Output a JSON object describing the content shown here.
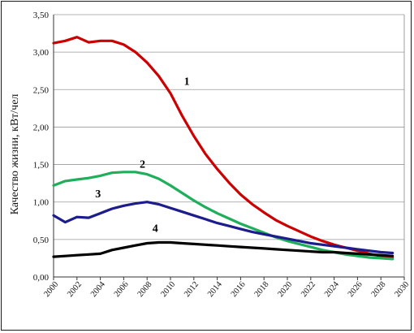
{
  "chart_data": {
    "type": "line",
    "title": "",
    "xlabel": "",
    "ylabel": "Качество жизни, кВт/чел",
    "xlim": [
      2000,
      2030
    ],
    "ylim": [
      0,
      3.5
    ],
    "y_ticks": [
      "0,00",
      "0,50",
      "1,00",
      "1,50",
      "2,00",
      "2,50",
      "3,00",
      "3,50"
    ],
    "x_ticks": [
      "2000",
      "2002",
      "2004",
      "2006",
      "2008",
      "2010",
      "2012",
      "2014",
      "2016",
      "2018",
      "2020",
      "2022",
      "2024",
      "2026",
      "2028",
      "2030"
    ],
    "grid": "horizontal",
    "legend": "none",
    "series": [
      {
        "name": "1",
        "color": "#cc0000",
        "points": [
          [
            2000,
            3.12
          ],
          [
            2001,
            3.15
          ],
          [
            2002,
            3.2
          ],
          [
            2003,
            3.13
          ],
          [
            2004,
            3.15
          ],
          [
            2005,
            3.15
          ],
          [
            2006,
            3.1
          ],
          [
            2007,
            3.0
          ],
          [
            2008,
            2.86
          ],
          [
            2009,
            2.68
          ],
          [
            2010,
            2.45
          ],
          [
            2011,
            2.15
          ],
          [
            2012,
            1.88
          ],
          [
            2013,
            1.64
          ],
          [
            2014,
            1.44
          ],
          [
            2015,
            1.26
          ],
          [
            2016,
            1.1
          ],
          [
            2017,
            0.97
          ],
          [
            2018,
            0.86
          ],
          [
            2019,
            0.76
          ],
          [
            2020,
            0.68
          ],
          [
            2021,
            0.61
          ],
          [
            2022,
            0.54
          ],
          [
            2023,
            0.48
          ],
          [
            2024,
            0.43
          ],
          [
            2025,
            0.39
          ],
          [
            2026,
            0.35
          ],
          [
            2027,
            0.31
          ],
          [
            2028,
            0.28
          ],
          [
            2029,
            0.26
          ]
        ]
      },
      {
        "name": "2",
        "color": "#1fae5a",
        "points": [
          [
            2000,
            1.22
          ],
          [
            2001,
            1.28
          ],
          [
            2002,
            1.3
          ],
          [
            2003,
            1.32
          ],
          [
            2004,
            1.35
          ],
          [
            2005,
            1.39
          ],
          [
            2006,
            1.4
          ],
          [
            2007,
            1.4
          ],
          [
            2008,
            1.37
          ],
          [
            2009,
            1.31
          ],
          [
            2010,
            1.22
          ],
          [
            2011,
            1.12
          ],
          [
            2012,
            1.02
          ],
          [
            2013,
            0.93
          ],
          [
            2014,
            0.85
          ],
          [
            2015,
            0.78
          ],
          [
            2016,
            0.71
          ],
          [
            2017,
            0.65
          ],
          [
            2018,
            0.59
          ],
          [
            2019,
            0.53
          ],
          [
            2020,
            0.48
          ],
          [
            2021,
            0.44
          ],
          [
            2022,
            0.4
          ],
          [
            2023,
            0.36
          ],
          [
            2024,
            0.33
          ],
          [
            2025,
            0.3
          ],
          [
            2026,
            0.28
          ],
          [
            2027,
            0.26
          ],
          [
            2028,
            0.25
          ],
          [
            2029,
            0.24
          ]
        ]
      },
      {
        "name": "3",
        "color": "#1c1c8c",
        "points": [
          [
            2000,
            0.82
          ],
          [
            2001,
            0.73
          ],
          [
            2002,
            0.8
          ],
          [
            2003,
            0.79
          ],
          [
            2004,
            0.85
          ],
          [
            2005,
            0.91
          ],
          [
            2006,
            0.95
          ],
          [
            2007,
            0.98
          ],
          [
            2008,
            1.0
          ],
          [
            2009,
            0.97
          ],
          [
            2010,
            0.92
          ],
          [
            2011,
            0.87
          ],
          [
            2012,
            0.82
          ],
          [
            2013,
            0.77
          ],
          [
            2014,
            0.72
          ],
          [
            2015,
            0.68
          ],
          [
            2016,
            0.64
          ],
          [
            2017,
            0.6
          ],
          [
            2018,
            0.57
          ],
          [
            2019,
            0.54
          ],
          [
            2020,
            0.51
          ],
          [
            2021,
            0.48
          ],
          [
            2022,
            0.45
          ],
          [
            2023,
            0.43
          ],
          [
            2024,
            0.41
          ],
          [
            2025,
            0.39
          ],
          [
            2026,
            0.37
          ],
          [
            2027,
            0.35
          ],
          [
            2028,
            0.33
          ],
          [
            2029,
            0.32
          ]
        ]
      },
      {
        "name": "4",
        "color": "#000000",
        "points": [
          [
            2000,
            0.27
          ],
          [
            2001,
            0.28
          ],
          [
            2002,
            0.29
          ],
          [
            2003,
            0.3
          ],
          [
            2004,
            0.31
          ],
          [
            2005,
            0.36
          ],
          [
            2006,
            0.39
          ],
          [
            2007,
            0.42
          ],
          [
            2008,
            0.45
          ],
          [
            2009,
            0.46
          ],
          [
            2010,
            0.46
          ],
          [
            2011,
            0.45
          ],
          [
            2012,
            0.44
          ],
          [
            2013,
            0.43
          ],
          [
            2014,
            0.42
          ],
          [
            2015,
            0.41
          ],
          [
            2016,
            0.4
          ],
          [
            2017,
            0.39
          ],
          [
            2018,
            0.38
          ],
          [
            2019,
            0.37
          ],
          [
            2020,
            0.36
          ],
          [
            2021,
            0.35
          ],
          [
            2022,
            0.34
          ],
          [
            2023,
            0.33
          ],
          [
            2024,
            0.33
          ],
          [
            2025,
            0.32
          ],
          [
            2026,
            0.31
          ],
          [
            2027,
            0.3
          ],
          [
            2028,
            0.29
          ],
          [
            2029,
            0.28
          ]
        ]
      }
    ],
    "annotations": [
      {
        "text": "1",
        "x": 2011.4,
        "y": 2.56
      },
      {
        "text": "2",
        "x": 2007.6,
        "y": 1.46
      },
      {
        "text": "3",
        "x": 2003.8,
        "y": 1.06
      },
      {
        "text": "4",
        "x": 2008.7,
        "y": 0.6
      }
    ]
  }
}
